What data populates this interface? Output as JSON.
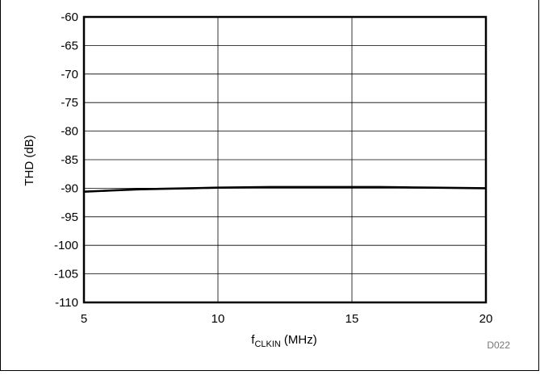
{
  "chart_data": {
    "type": "line",
    "title": "",
    "xlabel": "(MHz)",
    "xlabel_main": "f",
    "xlabel_sub": "CLKIN",
    "ylabel": "THD (dB)",
    "xlim": [
      5,
      20
    ],
    "ylim": [
      -110,
      -60
    ],
    "xticks": [
      5,
      10,
      15,
      20
    ],
    "yticks": [
      -60,
      -65,
      -70,
      -75,
      -80,
      -85,
      -90,
      -95,
      -100,
      -105,
      -110
    ],
    "grid": true,
    "legend": "none",
    "series": [
      {
        "color": "#000000",
        "x": [
          5,
          6,
          7,
          8,
          9,
          10,
          11,
          12,
          13,
          14,
          15,
          16,
          17,
          18,
          19,
          20
        ],
        "y": [
          -90.6,
          -90.4,
          -90.2,
          -90.1,
          -90.0,
          -89.9,
          -89.85,
          -89.8,
          -89.8,
          -89.8,
          -89.8,
          -89.8,
          -89.85,
          -89.9,
          -89.95,
          -90.0
        ]
      }
    ]
  },
  "figure_code": "D022",
  "colors": {
    "line": "#000000",
    "grid": "#000000",
    "code": "#777777"
  }
}
